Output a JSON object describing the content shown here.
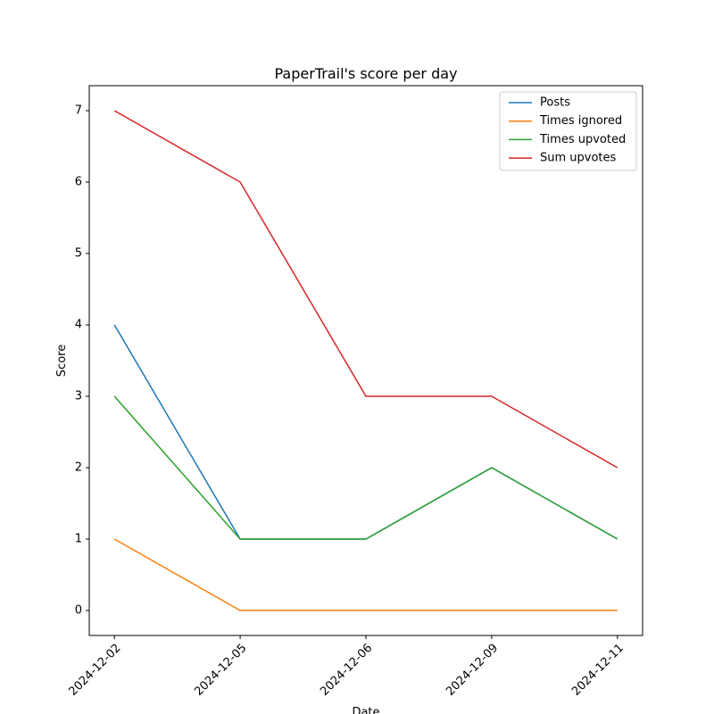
{
  "chart_data": {
    "type": "line",
    "title": "PaperTrail's score per day",
    "x_label": "Date",
    "y_label": "Score",
    "categories": [
      "2024-12-02",
      "2024-12-05",
      "2024-12-06",
      "2024-12-09",
      "2024-12-11"
    ],
    "series": [
      {
        "name": "Posts",
        "color": "#1f77b4",
        "values": [
          4,
          1,
          1,
          2,
          1
        ]
      },
      {
        "name": "Times ignored",
        "color": "#ff7f0e",
        "values": [
          1,
          0,
          0,
          0,
          0
        ]
      },
      {
        "name": "Times upvoted",
        "color": "#2ca02c",
        "values": [
          3,
          1,
          1,
          2,
          1
        ]
      },
      {
        "name": "Sum upvotes",
        "color": "#d62728",
        "values": [
          7,
          6,
          3,
          3,
          2
        ]
      }
    ],
    "ylim": [
      -0.35,
      7.35
    ],
    "yticks": [
      0,
      1,
      2,
      3,
      4,
      5,
      6,
      7
    ],
    "legend": "upper right"
  }
}
